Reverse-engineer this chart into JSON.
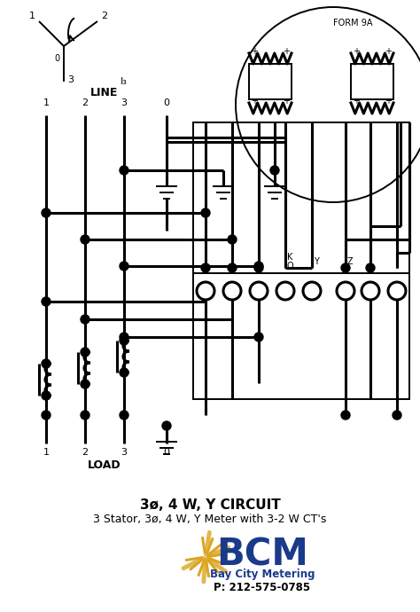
{
  "bg_color": "#ffffff",
  "lc": "#000000",
  "title": "3ø, 4 W, Y CIRCUIT",
  "subtitle": "3 Stator, 3ø, 4 W, Y Meter with 3-2 W CT's",
  "form_label": "FORM 9A",
  "phone": "P: 212-575-0785",
  "company": "Bay City Metering",
  "bcm_color": "#1a3a8a",
  "gold_color": "#DAA520",
  "lw": 2.2,
  "tlw": 1.4,
  "line_labels": [
    "1",
    "2",
    "3",
    "0"
  ],
  "load_labels": [
    "1",
    "2",
    "3",
    "0"
  ]
}
